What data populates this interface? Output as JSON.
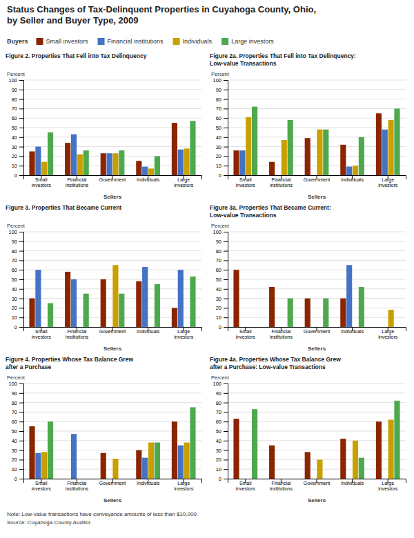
{
  "title": "Status Changes of Tax-Delinquent Properties in Cuyahoga County, Ohio,\nby Seller and Buyer Type, 2009",
  "note": "Note: Low-value transactions have conveyance amounts of less than $10,000.\nSource: Cuyahoga County Auditor.",
  "legend_title": "Buyers",
  "chart_data": [
    {
      "type": "bar",
      "title": "Figure 2. Properties That Fell into Tax Delinquency",
      "xlabel": "Sellers",
      "ylabel": "Percent",
      "categories": [
        "Small\ninvestors",
        "Financial\ninstitutions",
        "Government",
        "Individuals",
        "Large\ninvestors"
      ],
      "series": [
        {
          "name": "Small investors",
          "color": "#8B2500",
          "values": [
            25,
            34,
            23,
            15,
            55
          ]
        },
        {
          "name": "Financial institutions",
          "color": "#4472C4",
          "values": [
            30,
            43,
            23,
            9,
            27
          ]
        },
        {
          "name": "Individuals",
          "color": "#C8A000",
          "values": [
            14,
            22,
            23,
            7,
            28
          ]
        },
        {
          "name": "Large investors",
          "color": "#4EA84E",
          "values": [
            45,
            26,
            26,
            20,
            57
          ]
        }
      ],
      "ylim": [
        0,
        100
      ],
      "yticks": [
        0,
        10,
        20,
        30,
        40,
        50,
        60,
        70,
        80,
        90,
        100
      ],
      "grid": true
    },
    {
      "type": "bar",
      "title": "Figure 2a. Properties That Fell into Tax Delinquency:\nLow-value Transactions",
      "xlabel": "Sellers",
      "ylabel": "Percent",
      "categories": [
        "Small\ninvestors",
        "Financial\ninstitutions",
        "Government",
        "Individuals",
        "Large\ninvestors"
      ],
      "series": [
        {
          "name": "Small investors",
          "color": "#8B2500",
          "values": [
            26,
            14,
            39,
            32,
            65
          ]
        },
        {
          "name": "Financial institutions",
          "color": "#4472C4",
          "values": [
            26,
            0,
            0,
            9,
            48
          ]
        },
        {
          "name": "Individuals",
          "color": "#C8A000",
          "values": [
            61,
            37,
            48,
            10,
            58
          ]
        },
        {
          "name": "Large investors",
          "color": "#4EA84E",
          "values": [
            72,
            58,
            48,
            40,
            70
          ]
        }
      ],
      "ylim": [
        0,
        100
      ],
      "yticks": [
        0,
        10,
        20,
        30,
        40,
        50,
        60,
        70,
        80,
        90,
        100
      ],
      "grid": true
    },
    {
      "type": "bar",
      "title": "Figure 3. Properties That Became Current",
      "xlabel": "Sellers",
      "ylabel": "Percent",
      "categories": [
        "Small\ninvestors",
        "Financial\ninstitutions",
        "Government",
        "Individuals",
        "Large\ninvestors"
      ],
      "series": [
        {
          "name": "Small investors",
          "color": "#8B2500",
          "values": [
            30,
            58,
            50,
            48,
            20
          ]
        },
        {
          "name": "Financial institutions",
          "color": "#4472C4",
          "values": [
            60,
            50,
            0,
            63,
            60
          ]
        },
        {
          "name": "Individuals",
          "color": "#C8A000",
          "values": [
            0,
            0,
            65,
            0,
            0
          ]
        },
        {
          "name": "Large investors",
          "color": "#4EA84E",
          "values": [
            25,
            35,
            35,
            45,
            53
          ]
        }
      ],
      "ylim": [
        0,
        100
      ],
      "yticks": [
        0,
        10,
        20,
        30,
        40,
        50,
        60,
        70,
        80,
        90,
        100
      ],
      "grid": true
    },
    {
      "type": "bar",
      "title": "Figure 3a. Properties That Became Current:\nLow-value Transactions",
      "xlabel": "Sellers",
      "ylabel": "Percent",
      "categories": [
        "Small\ninvestors",
        "Financial\ninstitutions",
        "Government",
        "Individuals",
        "Large\ninvestors"
      ],
      "series": [
        {
          "name": "Small investors",
          "color": "#8B2500",
          "values": [
            60,
            42,
            30,
            30,
            0
          ]
        },
        {
          "name": "Financial institutions",
          "color": "#4472C4",
          "values": [
            0,
            0,
            0,
            65,
            0
          ]
        },
        {
          "name": "Individuals",
          "color": "#C8A000",
          "values": [
            0,
            0,
            0,
            0,
            18
          ]
        },
        {
          "name": "Large investors",
          "color": "#4EA84E",
          "values": [
            0,
            30,
            30,
            42,
            0
          ]
        }
      ],
      "ylim": [
        0,
        100
      ],
      "yticks": [
        0,
        10,
        20,
        30,
        40,
        50,
        60,
        70,
        80,
        90,
        100
      ],
      "grid": true
    },
    {
      "type": "bar",
      "title": "Figure 4. Properties Whose Tax Balance Grew\nafter a Purchase",
      "xlabel": "Sellers",
      "ylabel": "Percent",
      "categories": [
        "Small\ninvestors",
        "Financial\ninstitutions",
        "Government",
        "Individuals",
        "Large\ninvestors"
      ],
      "series": [
        {
          "name": "Small investors",
          "color": "#8B2500",
          "values": [
            55,
            0,
            27,
            30,
            60
          ]
        },
        {
          "name": "Financial institutions",
          "color": "#4472C4",
          "values": [
            27,
            47,
            0,
            22,
            35
          ]
        },
        {
          "name": "Individuals",
          "color": "#C8A000",
          "values": [
            28,
            0,
            21,
            38,
            38
          ]
        },
        {
          "name": "Large investors",
          "color": "#4EA84E",
          "values": [
            60,
            0,
            0,
            38,
            75
          ]
        }
      ],
      "ylim": [
        0,
        100
      ],
      "yticks": [
        0,
        10,
        20,
        30,
        40,
        50,
        60,
        70,
        80,
        90,
        100
      ],
      "grid": true
    },
    {
      "type": "bar",
      "title": "Figure 4a. Properties Whose Tax Balance Grew\nafter a Purchase: Low-value Transactions",
      "xlabel": "Sellers",
      "ylabel": "Percent",
      "categories": [
        "Small\ninvestors",
        "Financial\ninstitutions",
        "Government",
        "Individuals",
        "Large\ninvestors"
      ],
      "series": [
        {
          "name": "Small investors",
          "color": "#8B2500",
          "values": [
            63,
            35,
            28,
            42,
            60
          ]
        },
        {
          "name": "Financial institutions",
          "color": "#4472C4",
          "values": [
            0,
            0,
            0,
            0,
            0
          ]
        },
        {
          "name": "Individuals",
          "color": "#C8A000",
          "values": [
            0,
            0,
            20,
            40,
            62
          ]
        },
        {
          "name": "Large investors",
          "color": "#4EA84E",
          "values": [
            73,
            0,
            0,
            22,
            82
          ]
        }
      ],
      "ylim": [
        0,
        100
      ],
      "yticks": [
        0,
        10,
        20,
        30,
        40,
        50,
        60,
        70,
        80,
        90,
        100
      ],
      "grid": true
    }
  ]
}
